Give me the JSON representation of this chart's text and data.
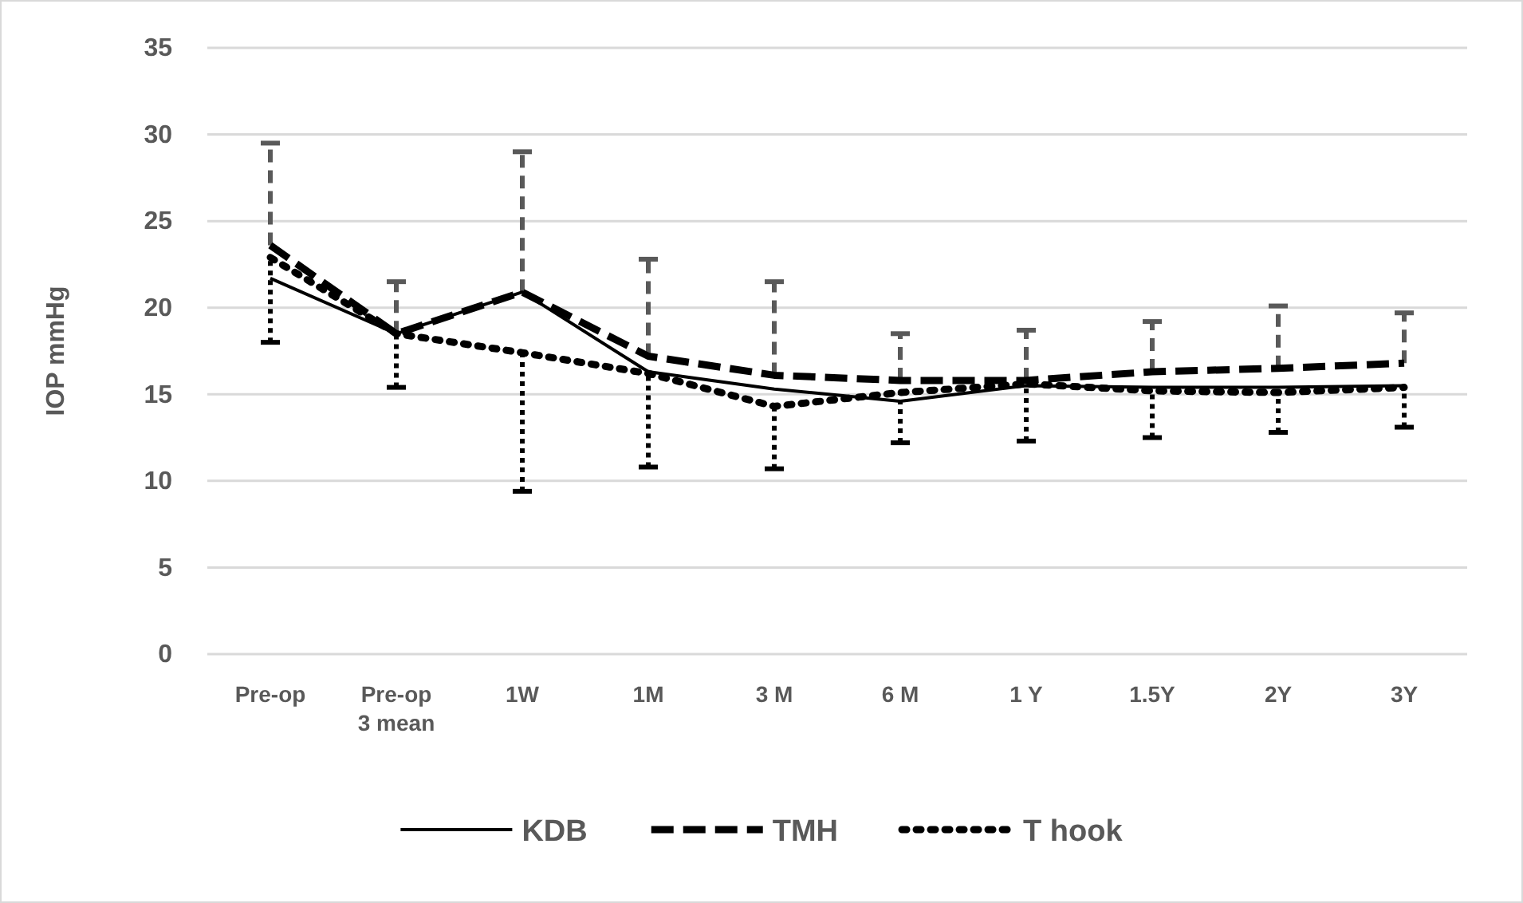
{
  "chart_data": {
    "type": "line",
    "ylabel": "IOP mmHg",
    "categories": [
      "Pre-op",
      "Pre-op\n3 mean",
      "1W",
      "1M",
      "3 M",
      "6 M",
      "1 Y",
      "1.5Y",
      "2Y",
      "3Y"
    ],
    "series": [
      {
        "name": "KDB",
        "color": "#000000",
        "line_style": "solid",
        "values": [
          21.7,
          18.5,
          20.9,
          16.3,
          15.3,
          14.6,
          15.5,
          15.4,
          15.4,
          15.5
        ]
      },
      {
        "name": "TMH",
        "color": "#000000",
        "line_style": "dashed",
        "values": [
          23.6,
          18.5,
          20.9,
          17.2,
          16.1,
          15.8,
          15.8,
          16.3,
          16.5,
          16.8
        ],
        "errors": [
          [
            23.6,
            29.5
          ],
          [
            18.5,
            21.5
          ],
          [
            20.9,
            29.0
          ],
          [
            17.2,
            22.8
          ],
          [
            16.1,
            21.5
          ],
          [
            15.8,
            18.5
          ],
          [
            15.8,
            18.7
          ],
          [
            16.3,
            19.2
          ],
          [
            16.5,
            20.1
          ],
          [
            16.8,
            19.7
          ]
        ]
      },
      {
        "name": "T hook",
        "color": "#000000",
        "line_style": "dotted",
        "values": [
          22.9,
          18.5,
          17.4,
          16.2,
          14.3,
          15.1,
          15.6,
          15.2,
          15.1,
          15.4
        ],
        "errors": [
          [
            18.0,
            22.9
          ],
          [
            15.4,
            18.5
          ],
          [
            9.4,
            17.4
          ],
          [
            10.8,
            16.2
          ],
          [
            10.7,
            14.3
          ],
          [
            12.2,
            15.1
          ],
          [
            12.3,
            15.6
          ],
          [
            12.5,
            15.2
          ],
          [
            12.8,
            15.1
          ],
          [
            13.1,
            15.4
          ]
        ]
      }
    ],
    "ylim": [
      0,
      35
    ],
    "yticks": [
      0,
      5,
      10,
      15,
      20,
      25,
      30,
      35
    ],
    "grid": "y",
    "legend": "bottom",
    "marker": "none"
  }
}
